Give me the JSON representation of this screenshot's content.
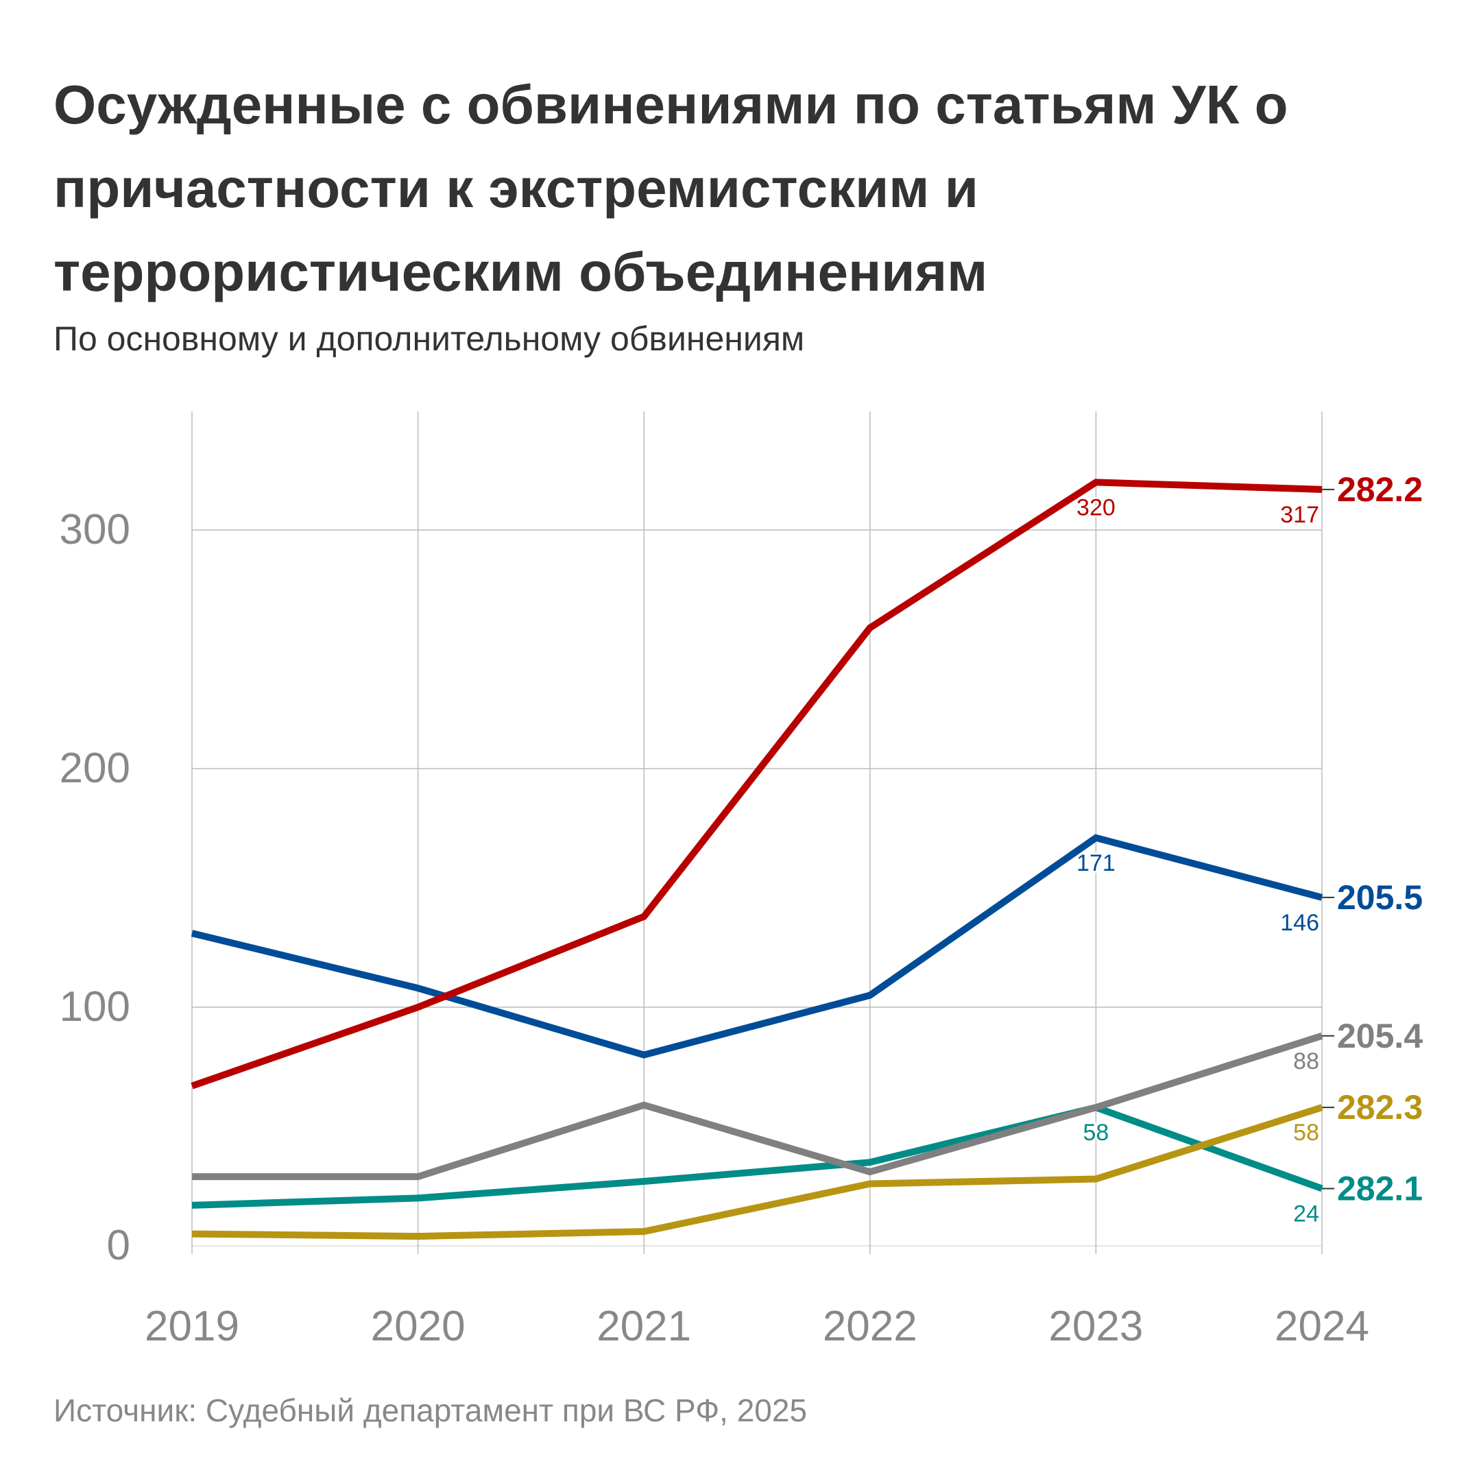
{
  "title": "Осужденные с обвинениями по статьям УК о причастности к экстремистским и террористическим объединениям",
  "subtitle": "По основному и дополнительному обвинениям",
  "source": "Источник: Судебный департамент при ВС РФ, 2025",
  "chart_data": {
    "type": "line",
    "x": [
      "2019",
      "2020",
      "2021",
      "2022",
      "2023",
      "2024"
    ],
    "ylim": [
      0,
      340
    ],
    "yticks": [
      "0",
      "100",
      "200",
      "300"
    ],
    "grid": true,
    "legend": "right-end labels",
    "series": [
      {
        "name": "282.2",
        "color": "#b80000",
        "values": [
          67,
          100,
          138,
          259,
          320,
          317
        ],
        "labels": {
          "4": "320",
          "5": "317"
        }
      },
      {
        "name": "205.5",
        "color": "#004c97",
        "values": [
          131,
          108,
          80,
          105,
          171,
          146
        ],
        "labels": {
          "4": "171",
          "5": "146"
        }
      },
      {
        "name": "205.4",
        "color": "#808080",
        "values": [
          29,
          29,
          59,
          31,
          58,
          88
        ],
        "labels": {
          "5": "88"
        }
      },
      {
        "name": "282.3",
        "color": "#b79512",
        "values": [
          5,
          4,
          6,
          26,
          28,
          58
        ],
        "labels": {
          "5": "58"
        }
      },
      {
        "name": "282.1",
        "color": "#008c87",
        "values": [
          17,
          20,
          27,
          35,
          58,
          24
        ],
        "labels": {
          "4": "58",
          "5": "24"
        }
      }
    ]
  }
}
